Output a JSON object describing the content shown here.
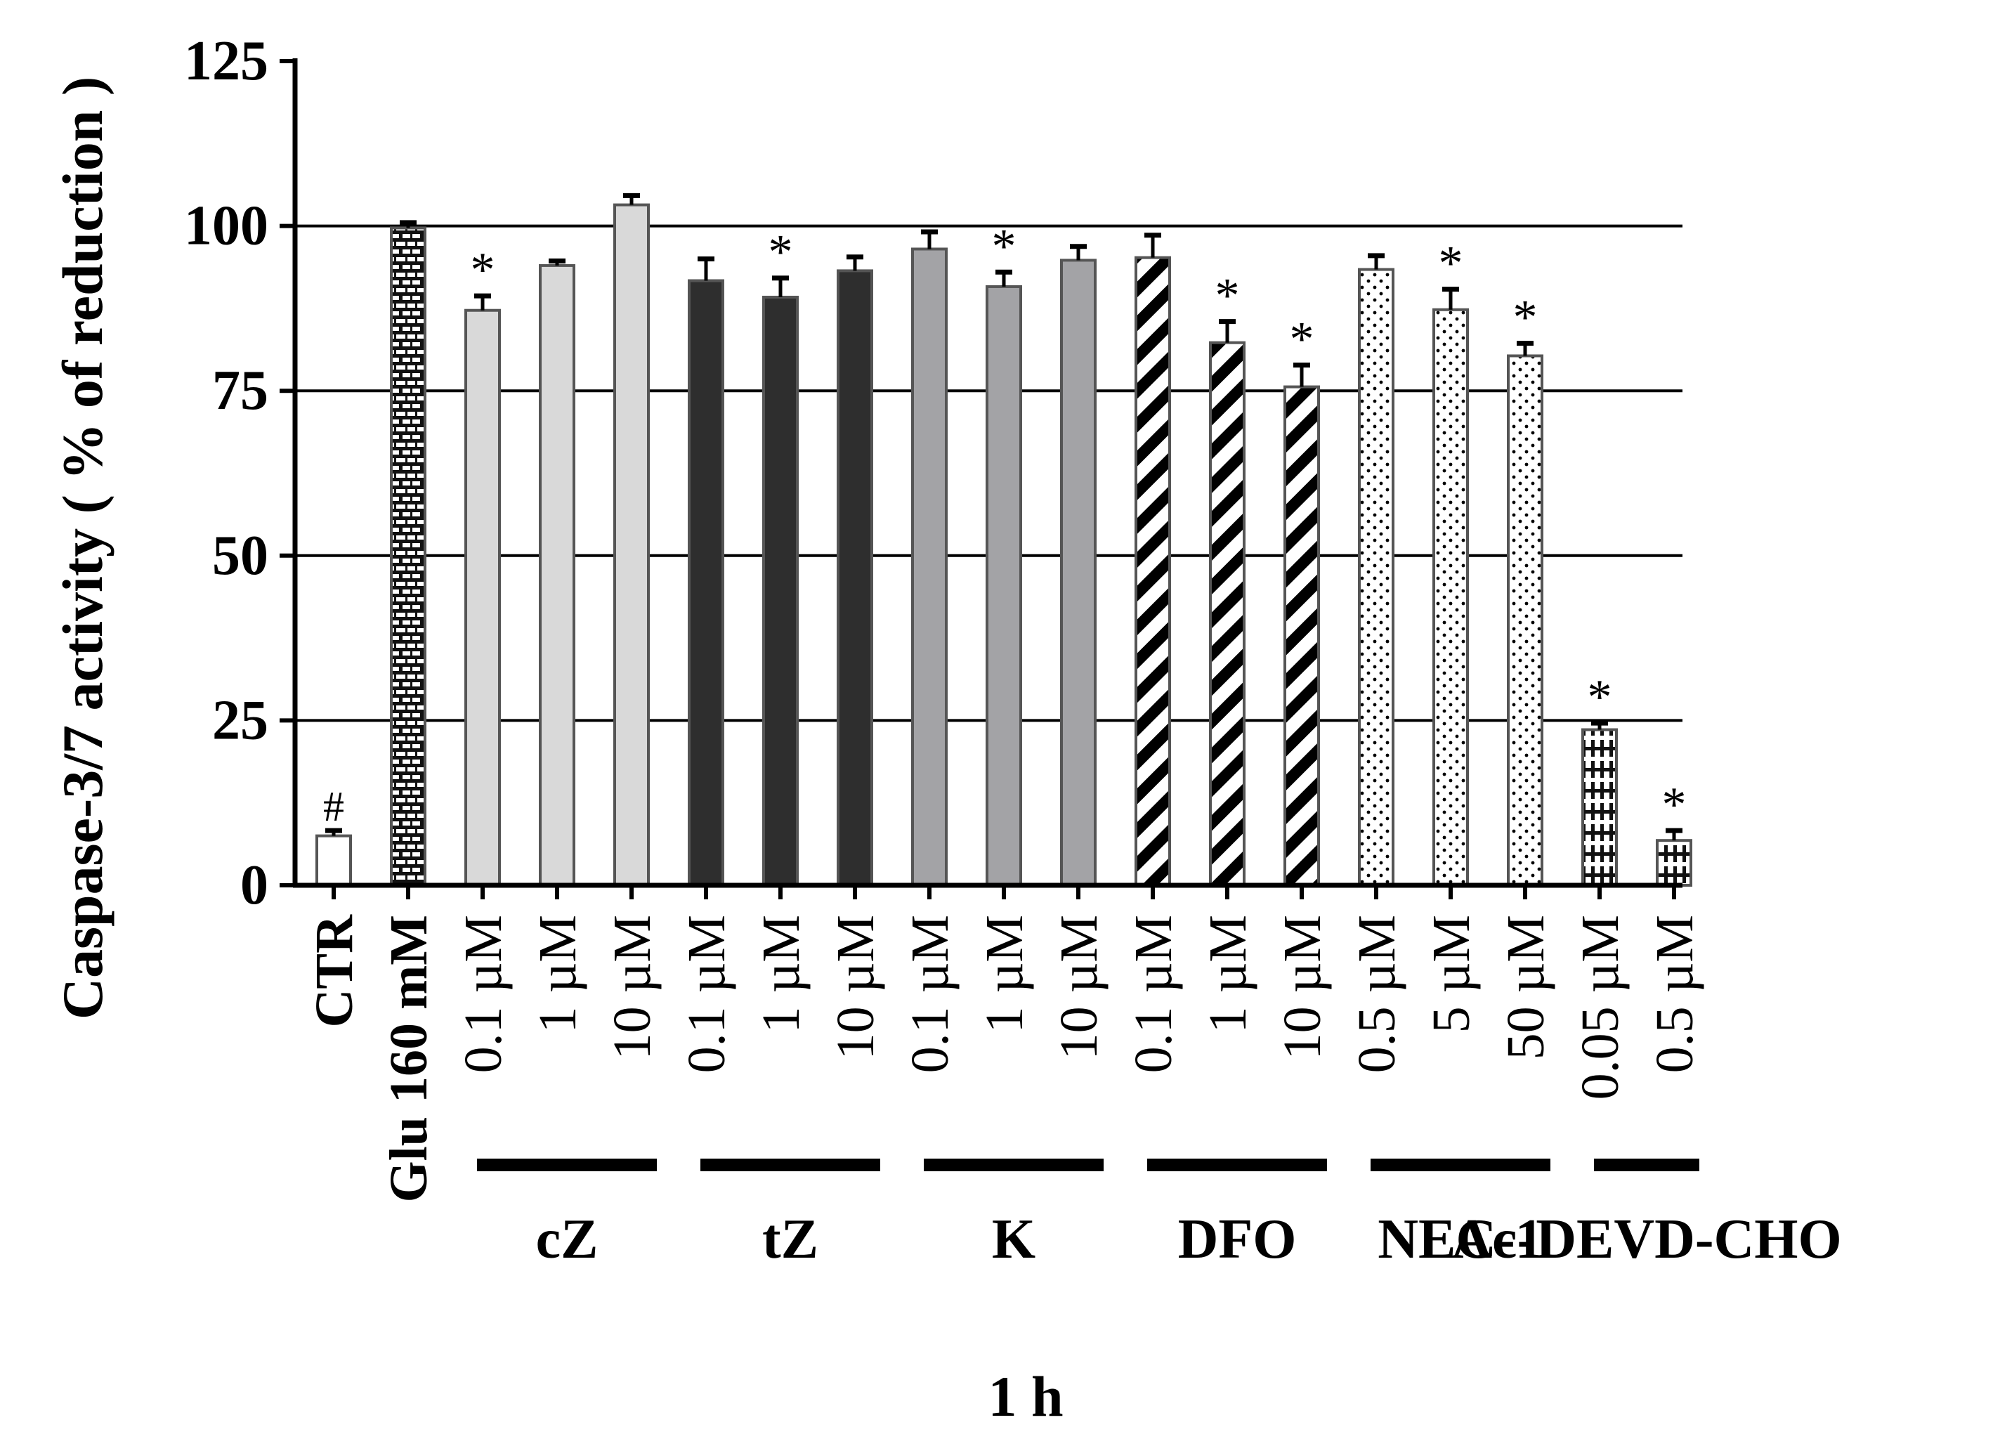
{
  "chart_data": {
    "type": "bar",
    "title": "",
    "xlabel": "1 h",
    "ylabel": "Caspase-3/7 activity ( % of reduction )",
    "ylim": [
      0,
      125
    ],
    "yticks": [
      0,
      25,
      50,
      75,
      100,
      125
    ],
    "gridlines": [
      25,
      50,
      75,
      100
    ],
    "categories": [
      "CTR",
      "Glu 160 mM",
      "0.1 µM",
      "1 µM",
      "10 µM",
      "0.1 µM",
      "1 µM",
      "10 µM",
      "0.1 µM",
      "1 µM",
      "10 µM",
      "0.1 µM",
      "1 µM",
      "10 µM",
      "0.5 µM",
      "5 µM",
      "50 µM",
      "0.05 µM",
      "0.5 µM"
    ],
    "values": [
      7.5,
      99.7,
      87.2,
      94.0,
      103.2,
      91.7,
      89.2,
      93.2,
      96.5,
      90.8,
      94.8,
      95.2,
      82.3,
      75.6,
      93.4,
      87.3,
      80.3,
      23.6,
      6.8
    ],
    "errors": [
      0.8,
      0.8,
      2.2,
      0.7,
      1.4,
      3.3,
      2.9,
      2.1,
      2.6,
      2.2,
      2.1,
      3.4,
      3.2,
      3.3,
      2.1,
      3.1,
      1.9,
      1.0,
      1.5
    ],
    "annotations": [
      "#",
      "",
      "*",
      "",
      "",
      "",
      "*",
      "",
      "",
      "*",
      "",
      "",
      "*",
      "*",
      "",
      "*",
      "*",
      "*",
      "*"
    ],
    "groups": [
      {
        "name": "cZ",
        "start": 2,
        "end": 4
      },
      {
        "name": "tZ",
        "start": 5,
        "end": 7
      },
      {
        "name": "K",
        "start": 8,
        "end": 10
      },
      {
        "name": "DFO",
        "start": 11,
        "end": 13
      },
      {
        "name": "NEC-1",
        "start": 14,
        "end": 16
      },
      {
        "name": "Ac-DEVD-CHO",
        "start": 17,
        "end": 18
      }
    ],
    "legend": "none",
    "styles": {
      "CTR": "#ffffff",
      "Glu": "#1a1a1a",
      "cZ": "#d9d9d9",
      "tZ": "#2e2e2e",
      "K": "#a3a3a6",
      "DFO": "#000000",
      "NEC-1": "#ffffff",
      "Ac-DEVD-CHO": "#ffffff",
      "axis": "#000000",
      "bar_outline": "#555555"
    }
  }
}
